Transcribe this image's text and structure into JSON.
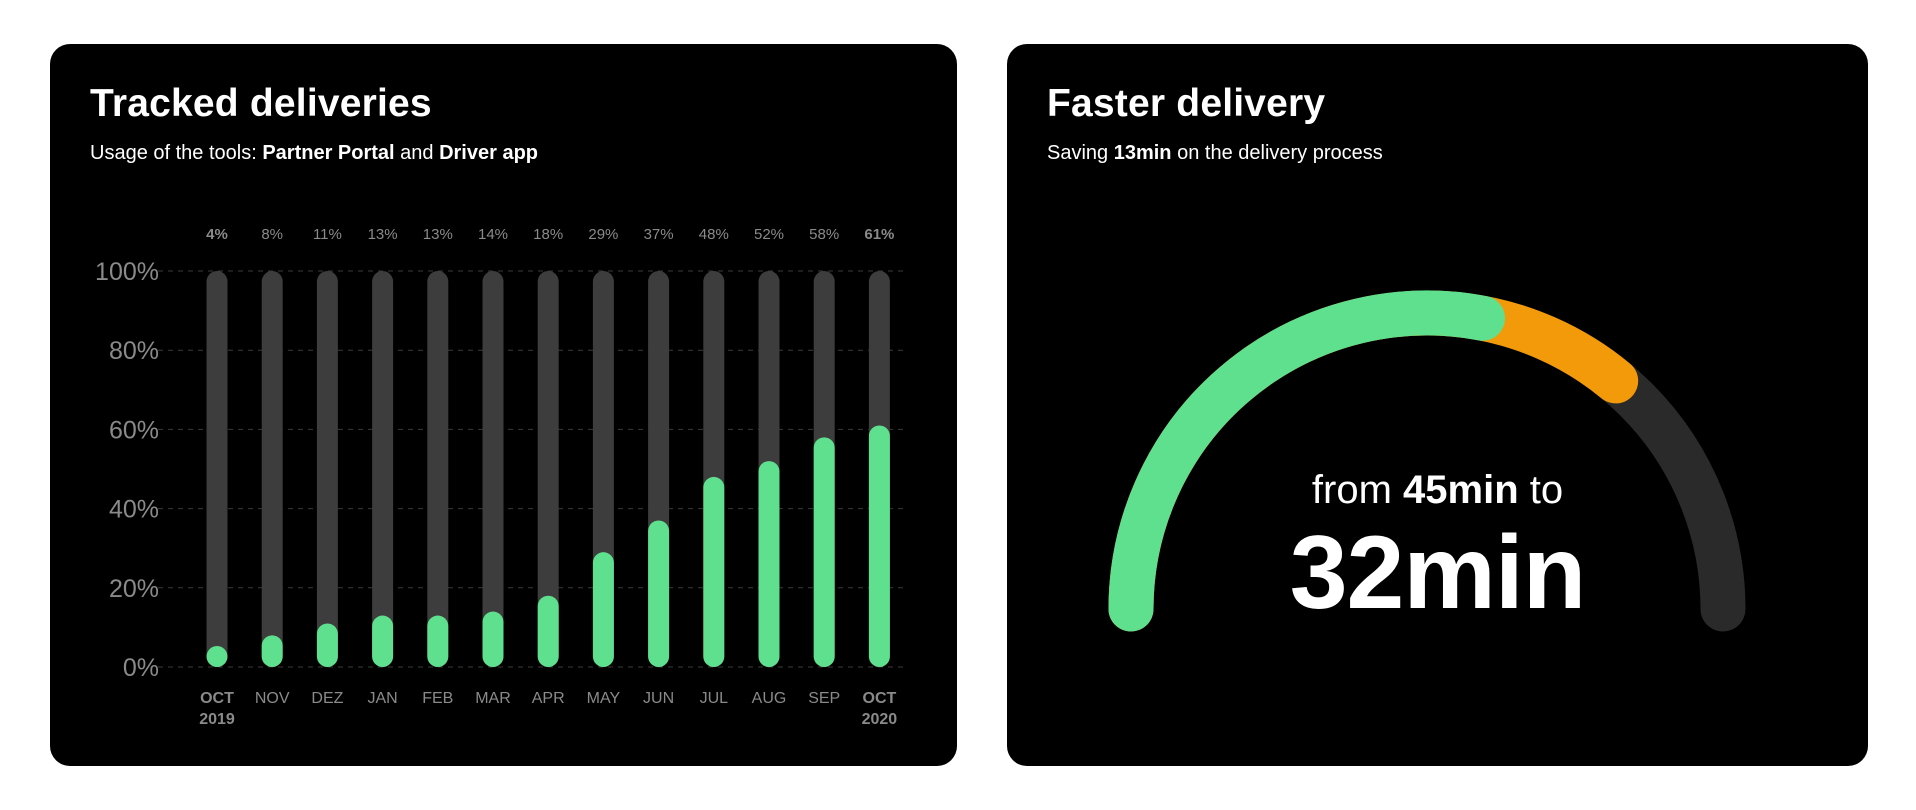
{
  "colors": {
    "background": "#ffffff",
    "card": "#000000",
    "track": "#3d3d3d",
    "bar": "#5fe08e",
    "gauge_orange": "#f39a0a",
    "gauge_track": "#2a2a2a",
    "axis_text": "#8a8a8a",
    "grid": "#3a3a3a"
  },
  "left_card": {
    "title": "Tracked deliveries",
    "subtitle_prefix": "Usage of the tools: ",
    "subtitle_tool1": "Partner Portal",
    "subtitle_and": " and ",
    "subtitle_tool2": "Driver app"
  },
  "right_card": {
    "title": "Faster delivery",
    "subtitle_prefix": "Saving ",
    "subtitle_value": "13min",
    "subtitle_suffix": " on the delivery process",
    "from_prefix": "from ",
    "from_value": "45min",
    "from_suffix": " to",
    "big_value": "32min"
  },
  "chart_data": [
    {
      "type": "bar",
      "title": "Tracked deliveries",
      "categories": [
        [
          "OCT",
          "2019"
        ],
        [
          "NOV"
        ],
        [
          "DEZ"
        ],
        [
          "JAN"
        ],
        [
          "FEB"
        ],
        [
          "MAR"
        ],
        [
          "APR"
        ],
        [
          "MAY"
        ],
        [
          "JUN"
        ],
        [
          "JUL"
        ],
        [
          "AUG"
        ],
        [
          "SEP"
        ],
        [
          "OCT",
          "2020"
        ]
      ],
      "values": [
        4,
        8,
        11,
        13,
        13,
        14,
        18,
        29,
        37,
        48,
        52,
        58,
        61
      ],
      "data_labels": [
        "4%",
        "8%",
        "11%",
        "13%",
        "13%",
        "14%",
        "18%",
        "29%",
        "37%",
        "48%",
        "52%",
        "58%",
        "61%"
      ],
      "y_ticks": [
        "0%",
        "20%",
        "40%",
        "60%",
        "80%",
        "100%"
      ],
      "ylim": [
        0,
        100
      ],
      "grid": true,
      "emphasized_categories": [
        0,
        12
      ]
    },
    {
      "type": "gauge",
      "title": "Faster delivery",
      "start_value": 45,
      "end_value": 32,
      "unit": "min",
      "saving": 13,
      "green_fraction": 0.56,
      "orange_fraction": 0.72
    }
  ]
}
